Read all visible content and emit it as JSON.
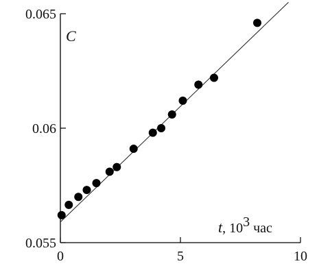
{
  "chart_data": {
    "type": "scatter",
    "title": "",
    "ylabel": "C",
    "xlabel_var": "t",
    "xlabel_sep": ", ",
    "xlabel_base": "10",
    "xlabel_exp": "3",
    "xlabel_unit": " час",
    "xlim": [
      0,
      10
    ],
    "ylim": [
      0.055,
      0.065
    ],
    "xticks": [
      0,
      5,
      10
    ],
    "xtick_labels": [
      "0",
      "5",
      "10"
    ],
    "yticks": [
      0.055,
      0.06,
      0.065
    ],
    "ytick_labels": [
      "0.055",
      "0.06",
      "0.065"
    ],
    "grid": false,
    "series": [
      {
        "x": [
          0.05,
          0.35,
          0.75,
          1.1,
          1.5,
          2.05,
          2.35,
          3.05,
          3.85,
          4.2,
          4.65,
          5.1,
          5.75,
          6.4,
          8.2
        ],
        "y": [
          0.0562,
          0.05665,
          0.057,
          0.0573,
          0.0576,
          0.0581,
          0.0583,
          0.0591,
          0.0598,
          0.06,
          0.0606,
          0.0612,
          0.0619,
          0.0622,
          0.0646
        ]
      }
    ],
    "fit_line": {
      "x": [
        0,
        9.5
      ],
      "y": [
        0.0559,
        0.0655
      ]
    }
  }
}
